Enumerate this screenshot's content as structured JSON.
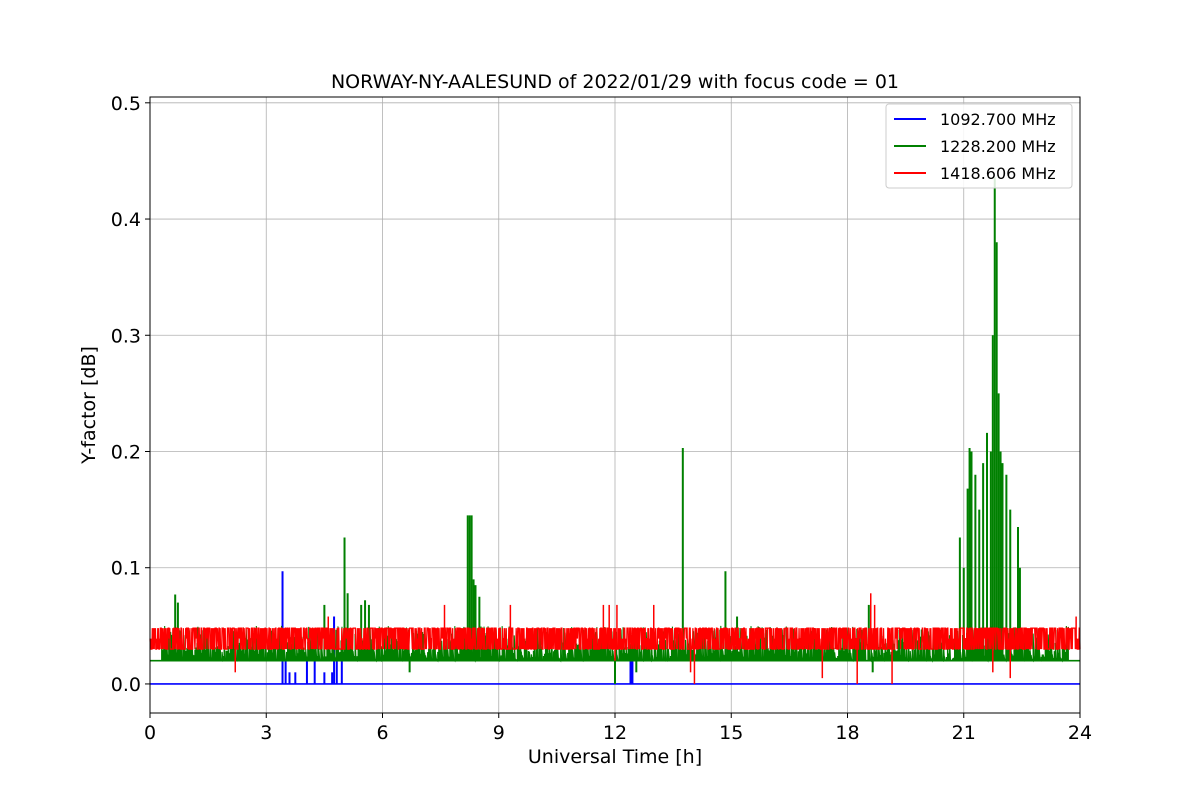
{
  "chart_data": {
    "type": "line",
    "title": "NORWAY-NY-AALESUND of 2022/01/29 with focus code = 01",
    "xlabel": "Universal Time [h]",
    "ylabel": "Y-factor [dB]",
    "xlim": [
      0,
      24
    ],
    "ylim": [
      -0.025,
      0.505
    ],
    "xticks": [
      0,
      3,
      6,
      9,
      12,
      15,
      18,
      21,
      24
    ],
    "yticks": [
      0.0,
      0.1,
      0.2,
      0.3,
      0.4,
      0.5
    ],
    "xtick_labels": [
      "0",
      "3",
      "6",
      "9",
      "12",
      "15",
      "18",
      "21",
      "24"
    ],
    "ytick_labels": [
      "0.0",
      "0.1",
      "0.2",
      "0.3",
      "0.4",
      "0.5"
    ],
    "grid": true,
    "legend_position": "top-right",
    "series": [
      {
        "name": "1092.700 MHz",
        "color": "#0000ff",
        "baseline": 0.0,
        "spikes": [
          [
            3.42,
            0.097
          ],
          [
            3.5,
            0.02
          ],
          [
            3.6,
            0.01
          ],
          [
            3.75,
            0.01
          ],
          [
            4.05,
            0.02
          ],
          [
            4.25,
            0.02
          ],
          [
            4.5,
            0.01
          ],
          [
            4.7,
            0.01
          ],
          [
            4.75,
            0.058
          ],
          [
            4.82,
            0.02
          ],
          [
            4.95,
            0.02
          ],
          [
            12.4,
            0.03
          ],
          [
            12.45,
            0.02
          ]
        ]
      },
      {
        "name": "1228.200 MHz",
        "color": "#008000",
        "baseline": 0.02,
        "spikes": [
          [
            0.65,
            0.077
          ],
          [
            0.72,
            0.07
          ],
          [
            4.5,
            0.068
          ],
          [
            5.02,
            0.126
          ],
          [
            5.1,
            0.078
          ],
          [
            5.45,
            0.068
          ],
          [
            5.55,
            0.072
          ],
          [
            5.65,
            0.068
          ],
          [
            6.7,
            0.01
          ],
          [
            8.2,
            0.145
          ],
          [
            8.25,
            0.145
          ],
          [
            8.3,
            0.145
          ],
          [
            8.35,
            0.09
          ],
          [
            8.4,
            0.085
          ],
          [
            8.5,
            0.075
          ],
          [
            12.0,
            0.0
          ],
          [
            12.55,
            0.01
          ],
          [
            13.75,
            0.203
          ],
          [
            14.85,
            0.097
          ],
          [
            15.15,
            0.058
          ],
          [
            18.55,
            0.068
          ],
          [
            18.65,
            0.01
          ],
          [
            20.9,
            0.126
          ],
          [
            21.0,
            0.1
          ],
          [
            21.1,
            0.168
          ],
          [
            21.15,
            0.203
          ],
          [
            21.2,
            0.2
          ],
          [
            21.3,
            0.18
          ],
          [
            21.4,
            0.15
          ],
          [
            21.5,
            0.19
          ],
          [
            21.6,
            0.216
          ],
          [
            21.7,
            0.2
          ],
          [
            21.75,
            0.3
          ],
          [
            21.8,
            0.436
          ],
          [
            21.85,
            0.38
          ],
          [
            21.9,
            0.25
          ],
          [
            21.95,
            0.2
          ],
          [
            22.0,
            0.19
          ],
          [
            22.1,
            0.18
          ],
          [
            22.2,
            0.15
          ],
          [
            22.4,
            0.135
          ],
          [
            22.45,
            0.1
          ]
        ]
      },
      {
        "name": "1418.606 MHz",
        "color": "#ff0000",
        "band_top": 0.048,
        "band_bottom": 0.03,
        "spikes": [
          [
            2.2,
            0.01
          ],
          [
            4.6,
            0.058
          ],
          [
            7.6,
            0.068
          ],
          [
            9.3,
            0.068
          ],
          [
            11.7,
            0.068
          ],
          [
            11.85,
            0.068
          ],
          [
            12.0,
            0.02
          ],
          [
            12.05,
            0.068
          ],
          [
            13.0,
            0.068
          ],
          [
            13.95,
            0.01
          ],
          [
            14.05,
            0.0
          ],
          [
            17.35,
            0.005
          ],
          [
            18.25,
            0.0
          ],
          [
            18.6,
            0.078
          ],
          [
            18.7,
            0.068
          ],
          [
            19.15,
            0.0
          ],
          [
            21.75,
            0.01
          ],
          [
            22.2,
            0.005
          ],
          [
            23.9,
            0.058
          ]
        ]
      }
    ]
  }
}
